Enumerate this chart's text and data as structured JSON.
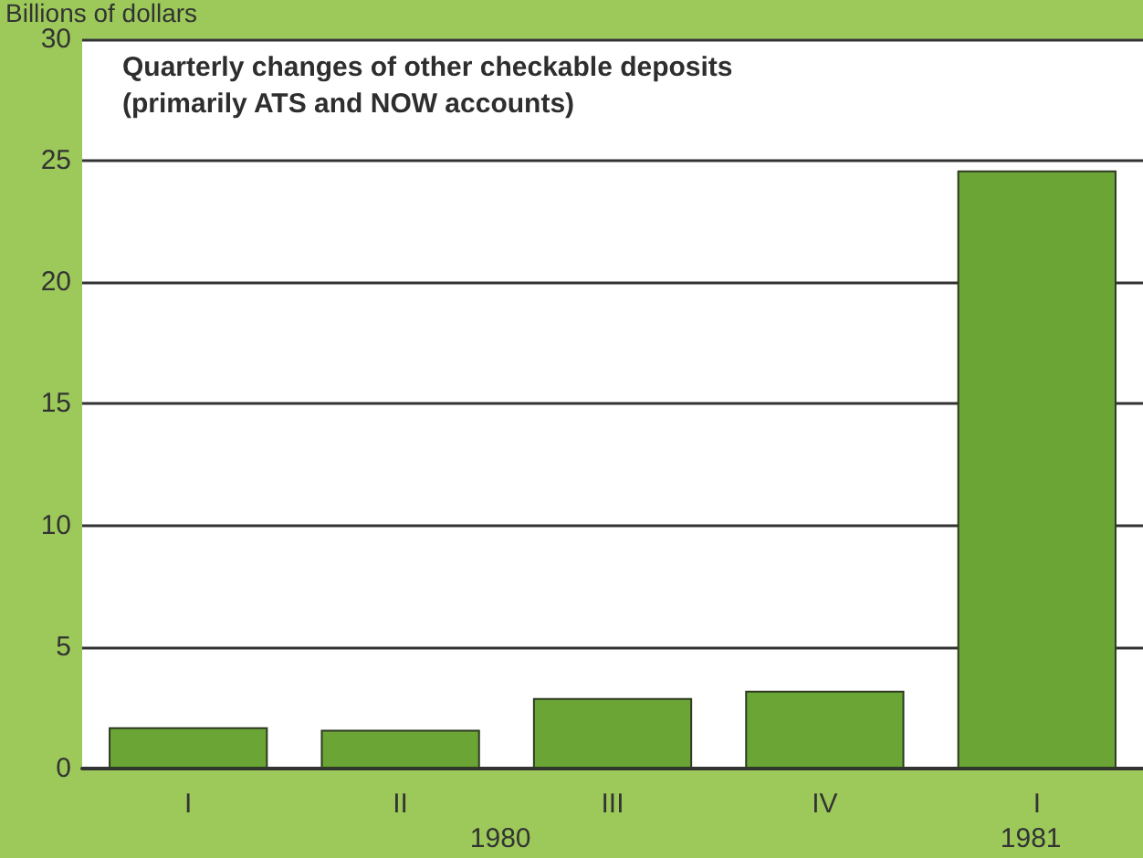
{
  "chart_data": {
    "type": "bar",
    "title": "Quarterly changes of other checkable deposits\n(primarily ATS and NOW accounts)",
    "ylabel": "Billions of dollars",
    "categories": [
      "I",
      "II",
      "III",
      "IV",
      "I"
    ],
    "values": [
      1.7,
      1.6,
      2.9,
      3.2,
      24.6
    ],
    "color": "#6aa536",
    "ylim": [
      0,
      30
    ],
    "yticks": [
      0,
      5,
      10,
      15,
      20,
      25,
      30
    ],
    "grid": "y",
    "annotations": [
      "1980",
      "1981"
    ]
  }
}
